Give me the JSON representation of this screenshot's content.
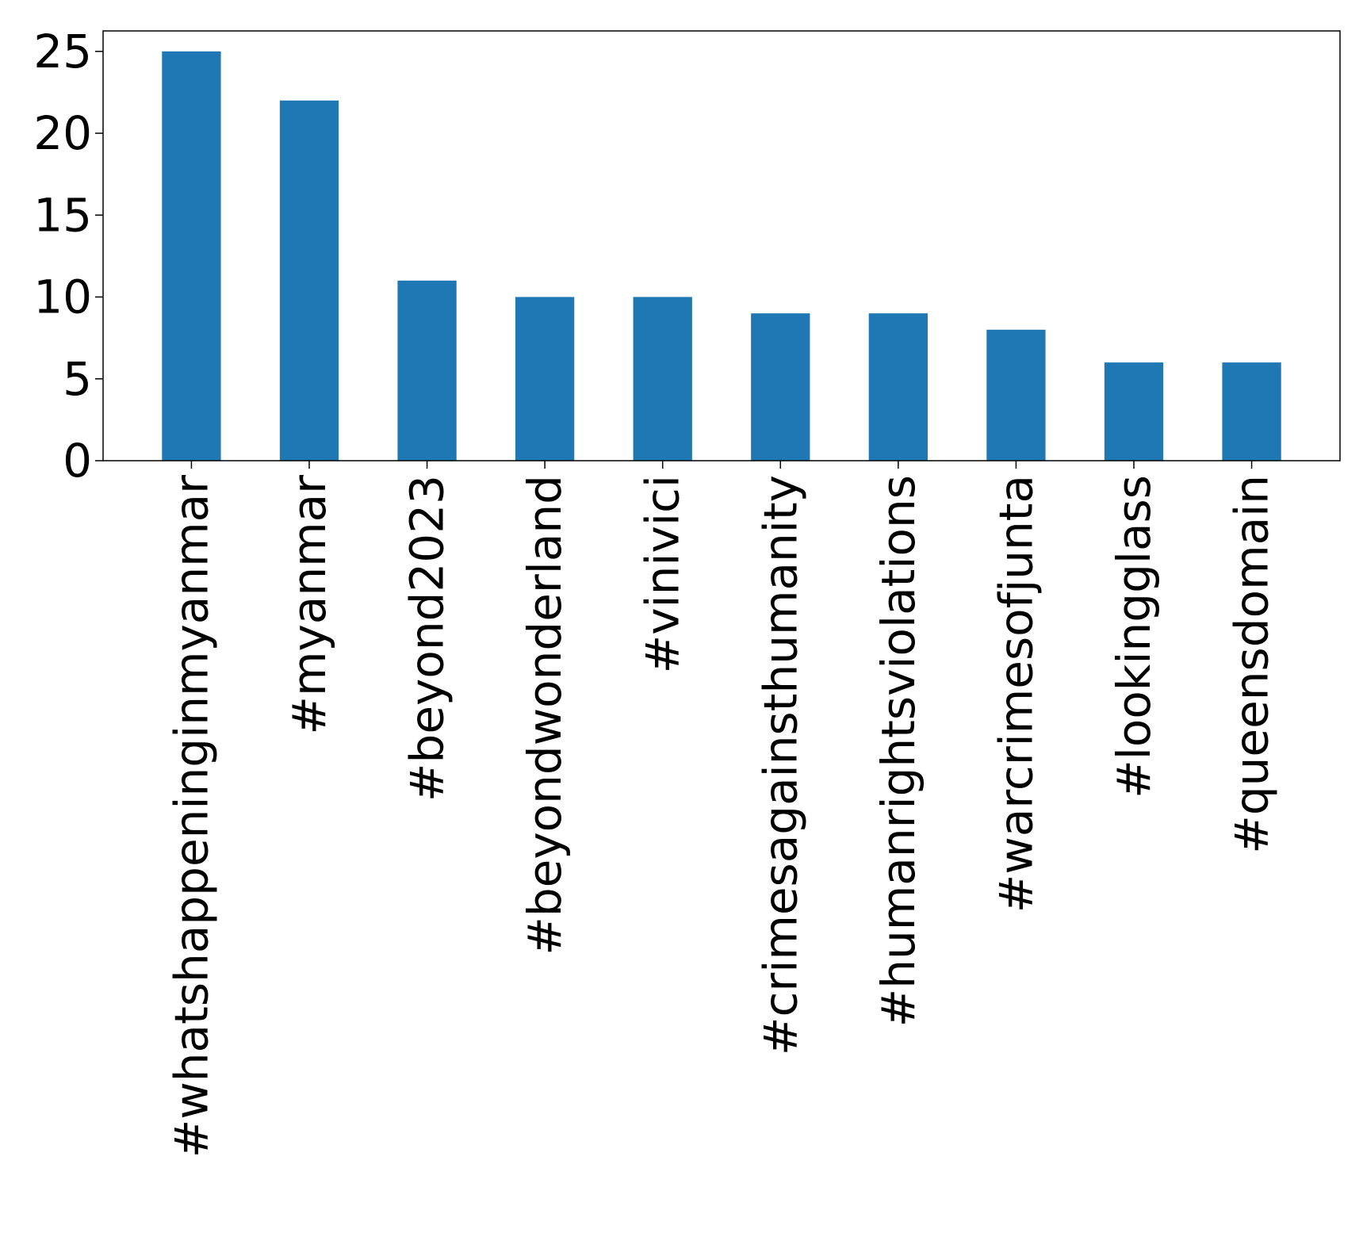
{
  "chart_data": {
    "type": "bar",
    "categories": [
      "#whatshappeninginmyanmar",
      "#myanmar",
      "#beyond2023",
      "#beyondwonderland",
      "#vinivici",
      "#crimesagainsthumanity",
      "#humanrightsviolations",
      "#warcrimesofjunta",
      "#lookingglass",
      "#queensdomain"
    ],
    "values": [
      25,
      22,
      11,
      10,
      10,
      9,
      9,
      8,
      6,
      6
    ],
    "yticks": [
      0,
      5,
      10,
      15,
      20,
      25
    ],
    "ylim": [
      0,
      26.25
    ],
    "title": "",
    "xlabel": "",
    "ylabel": "",
    "grid": false,
    "bar_color": "#1f77b4"
  }
}
